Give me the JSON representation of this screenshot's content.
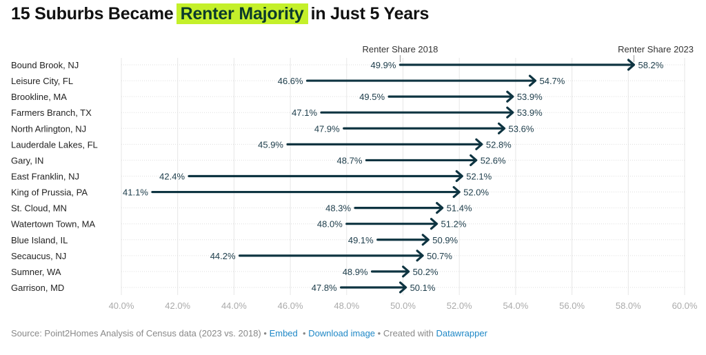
{
  "title": {
    "pre": "15 Suburbs Became",
    "highlight": "Renter Majority",
    "post": "in Just 5 Years",
    "highlight_color": "#c4f02a"
  },
  "chart_data": {
    "type": "arrow-dot",
    "series_labels": {
      "start": "Renter Share 2018",
      "end": "Renter Share 2023"
    },
    "categories": [
      "Bound Brook, NJ",
      "Leisure City, FL",
      "Brookline, MA",
      "Farmers Branch, TX",
      "North Arlington, NJ",
      "Lauderdale Lakes, FL",
      "Gary, IN",
      "East Franklin, NJ",
      "King of Prussia, PA",
      "St. Cloud, MN",
      "Watertown Town, MA",
      "Blue Island, IL",
      "Secaucus, NJ",
      "Sumner, WA",
      "Garrison, MD"
    ],
    "start_values": [
      49.9,
      46.6,
      49.5,
      47.1,
      47.9,
      45.9,
      48.7,
      42.4,
      41.1,
      48.3,
      48.0,
      49.1,
      44.2,
      48.9,
      47.8
    ],
    "end_values": [
      58.2,
      54.7,
      53.9,
      53.9,
      53.6,
      52.8,
      52.6,
      52.1,
      52.0,
      51.4,
      51.2,
      50.9,
      50.7,
      50.2,
      50.1
    ],
    "xlim": [
      40,
      60
    ],
    "x_ticks": [
      "40.0%",
      "42.0%",
      "44.0%",
      "46.0%",
      "48.0%",
      "50.0%",
      "52.0%",
      "54.0%",
      "56.0%",
      "58.0%",
      "60.0%"
    ],
    "grid": true,
    "arrow_color": "#0e3441",
    "label_color": "#1c3c4a"
  },
  "footer": {
    "source": "Source: Point2Homes Analysis of Census data (2023 vs. 2018)",
    "embed": "Embed",
    "download": "Download image",
    "created": "Created with",
    "datawrapper": "Datawrapper",
    "sep": "•"
  }
}
